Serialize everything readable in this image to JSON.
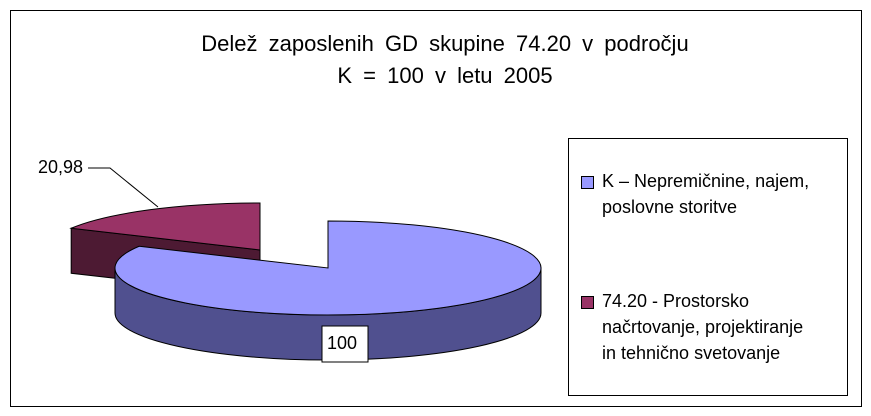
{
  "chart_data": {
    "type": "pie",
    "title": "Delež zaposlenih GD skupine 74.20 v področju\nK = 100 v letu 2005",
    "categories": [
      "K – Nepremičnine, najem,\nposlovne storitve",
      "74.20 - Prostorsko\nnačrtovanje, projektiranje\nin tehnično svetovanje"
    ],
    "values": [
      100,
      20.98
    ],
    "value_labels": [
      "100",
      "20,98"
    ],
    "colors": [
      "#9999ff",
      "#993366"
    ],
    "side_colors": [
      "#50508f",
      "#4d1a33"
    ],
    "legend": "right"
  }
}
